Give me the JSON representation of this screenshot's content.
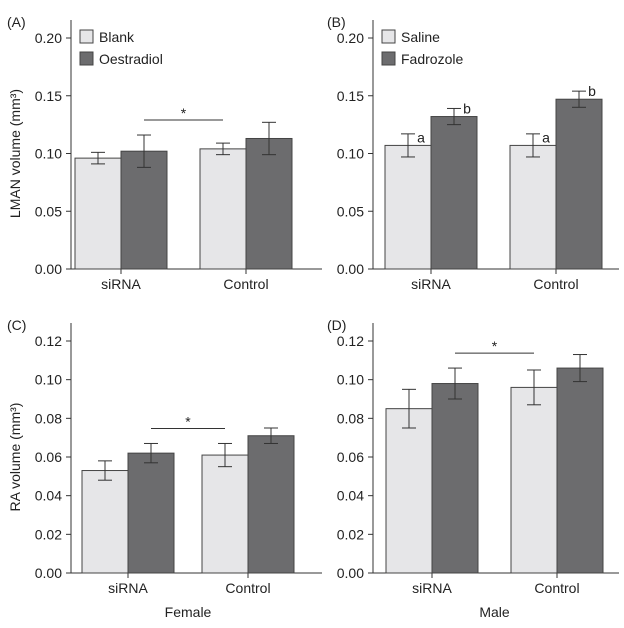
{
  "chart_data": [
    {
      "panel": "(A)",
      "type": "bar",
      "ylabel": "LMAN volume (mm³)",
      "xlabel": "",
      "ylim": [
        0,
        0.2
      ],
      "yticks": [
        "0.00",
        "0.05",
        "0.10",
        "0.15",
        "0.20"
      ],
      "categories": [
        "siRNA",
        "Control"
      ],
      "legend_position": "top-left",
      "series": [
        {
          "name": "Blank",
          "color": "#e6e6e8",
          "values": [
            0.096,
            0.104
          ],
          "errors": [
            0.005,
            0.005
          ],
          "labels": [
            "",
            ""
          ]
        },
        {
          "name": "Oestradiol",
          "color": "#6c6c6e",
          "values": [
            0.102,
            0.113
          ],
          "errors": [
            0.014,
            0.014
          ],
          "labels": [
            "",
            ""
          ]
        }
      ],
      "significance": "*"
    },
    {
      "panel": "(B)",
      "type": "bar",
      "ylabel": "",
      "xlabel": "",
      "ylim": [
        0,
        0.2
      ],
      "yticks": [
        "0.00",
        "0.05",
        "0.10",
        "0.15",
        "0.20"
      ],
      "categories": [
        "siRNA",
        "Control"
      ],
      "legend_position": "top-left",
      "series": [
        {
          "name": "Saline",
          "color": "#e6e6e8",
          "values": [
            0.107,
            0.107
          ],
          "errors": [
            0.01,
            0.01
          ],
          "labels": [
            "a",
            "a"
          ]
        },
        {
          "name": "Fadrozole",
          "color": "#6c6c6e",
          "values": [
            0.132,
            0.147
          ],
          "errors": [
            0.007,
            0.007
          ],
          "labels": [
            "b",
            "b"
          ]
        }
      ],
      "significance": ""
    },
    {
      "panel": "(C)",
      "type": "bar",
      "ylabel": "RA volume (mm³)",
      "xlabel": "Female",
      "ylim": [
        0,
        0.12
      ],
      "yticks": [
        "0.00",
        "0.02",
        "0.04",
        "0.06",
        "0.08",
        "0.10",
        "0.12"
      ],
      "categories": [
        "siRNA",
        "Control"
      ],
      "legend_position": "none",
      "series": [
        {
          "name": "Blank",
          "color": "#e6e6e8",
          "values": [
            0.053,
            0.061
          ],
          "errors": [
            0.005,
            0.006
          ],
          "labels": [
            "",
            ""
          ]
        },
        {
          "name": "Oestradiol",
          "color": "#6c6c6e",
          "values": [
            0.062,
            0.071
          ],
          "errors": [
            0.005,
            0.004
          ],
          "labels": [
            "",
            ""
          ]
        }
      ],
      "significance": "*"
    },
    {
      "panel": "(D)",
      "type": "bar",
      "ylabel": "",
      "xlabel": "Male",
      "ylim": [
        0,
        0.12
      ],
      "yticks": [
        "0.00",
        "0.02",
        "0.04",
        "0.06",
        "0.08",
        "0.10",
        "0.12"
      ],
      "categories": [
        "siRNA",
        "Control"
      ],
      "legend_position": "none",
      "series": [
        {
          "name": "Saline",
          "color": "#e6e6e8",
          "values": [
            0.085,
            0.096
          ],
          "errors": [
            0.01,
            0.009
          ],
          "labels": [
            "",
            ""
          ]
        },
        {
          "name": "Fadrozole",
          "color": "#6c6c6e",
          "values": [
            0.098,
            0.106
          ],
          "errors": [
            0.008,
            0.007
          ],
          "labels": [
            "",
            ""
          ]
        }
      ],
      "significance": "*"
    }
  ]
}
